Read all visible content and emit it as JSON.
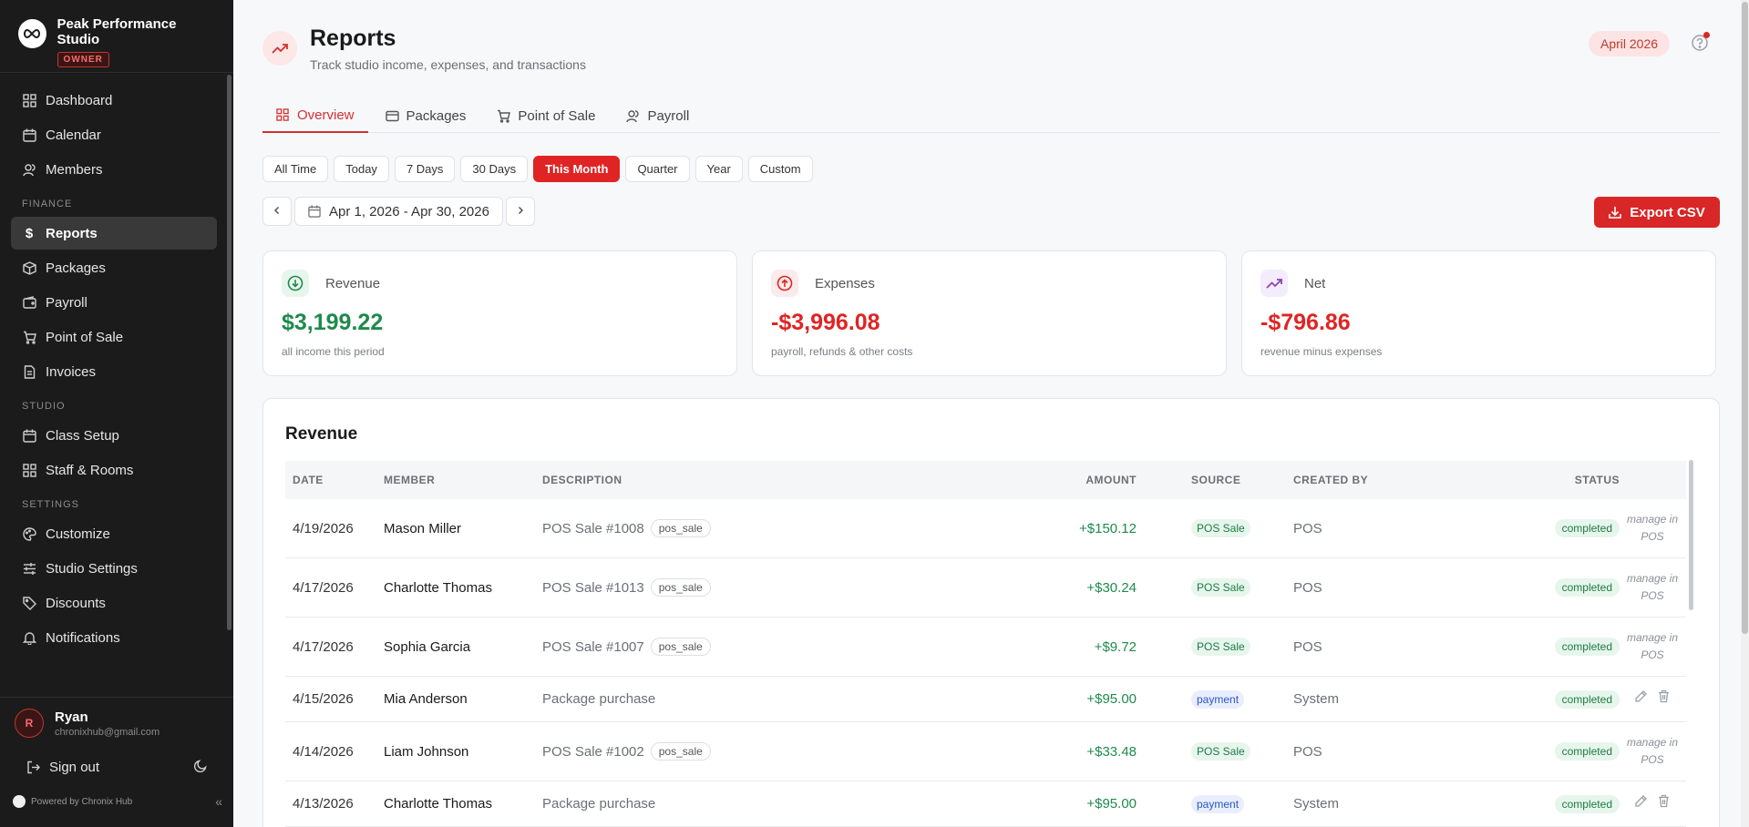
{
  "brand": {
    "name": "Peak Performance Studio",
    "role_badge": "OWNER"
  },
  "sidebar": {
    "items": [
      {
        "label": "Dashboard"
      },
      {
        "label": "Calendar"
      },
      {
        "label": "Members"
      }
    ],
    "finance_label": "FINANCE",
    "finance": [
      {
        "label": "Reports"
      },
      {
        "label": "Packages"
      },
      {
        "label": "Payroll"
      },
      {
        "label": "Point of Sale"
      },
      {
        "label": "Invoices"
      }
    ],
    "studio_label": "STUDIO",
    "studio": [
      {
        "label": "Class Setup"
      },
      {
        "label": "Staff & Rooms"
      }
    ],
    "settings_label": "SETTINGS",
    "settings": [
      {
        "label": "Customize"
      },
      {
        "label": "Studio Settings"
      },
      {
        "label": "Discounts"
      },
      {
        "label": "Notifications"
      }
    ],
    "user": {
      "initial": "R",
      "name": "Ryan",
      "email": "chronixhub@gmail.com"
    },
    "signout_label": "Sign out",
    "powered_by": "Powered by Chronix Hub"
  },
  "header": {
    "title": "Reports",
    "subtitle": "Track studio income, expenses, and transactions",
    "period_badge": "April 2026"
  },
  "tabs": [
    {
      "label": "Overview"
    },
    {
      "label": "Packages"
    },
    {
      "label": "Point of Sale"
    },
    {
      "label": "Payroll"
    }
  ],
  "filters": [
    "All Time",
    "Today",
    "7 Days",
    "30 Days",
    "This Month",
    "Quarter",
    "Year",
    "Custom"
  ],
  "active_filter": "This Month",
  "date_range": "Apr 1, 2026 - Apr 30, 2026",
  "export_label": "Export CSV",
  "cards": {
    "revenue": {
      "label": "Revenue",
      "value": "$3,199.22",
      "note": "all income this period"
    },
    "expenses": {
      "label": "Expenses",
      "value": "-$3,996.08",
      "note": "payroll, refunds & other costs"
    },
    "net": {
      "label": "Net",
      "value": "-$796.86",
      "note": "revenue minus expenses"
    }
  },
  "colors": {
    "accent": "#d92626",
    "positive": "#1e8a4c",
    "negative": "#e02424"
  },
  "revenue_table": {
    "title": "Revenue",
    "columns": {
      "date": "DATE",
      "member": "MEMBER",
      "description": "DESCRIPTION",
      "amount": "AMOUNT",
      "source": "SOURCE",
      "created_by": "CREATED BY",
      "status": "STATUS"
    },
    "rows": [
      {
        "date": "4/19/2026",
        "member": "Mason Miller",
        "description": "POS Sale #1008",
        "tag": "pos_sale",
        "amount": "+$150.12",
        "source": "POS Sale",
        "created_by": "POS",
        "status": "completed",
        "action": "manage in POS"
      },
      {
        "date": "4/17/2026",
        "member": "Charlotte Thomas",
        "description": "POS Sale #1013",
        "tag": "pos_sale",
        "amount": "+$30.24",
        "source": "POS Sale",
        "created_by": "POS",
        "status": "completed",
        "action": "manage in POS"
      },
      {
        "date": "4/17/2026",
        "member": "Sophia Garcia",
        "description": "POS Sale #1007",
        "tag": "pos_sale",
        "amount": "+$9.72",
        "source": "POS Sale",
        "created_by": "POS",
        "status": "completed",
        "action": "manage in POS"
      },
      {
        "date": "4/15/2026",
        "member": "Mia Anderson",
        "description": "Package purchase",
        "tag": "",
        "amount": "+$95.00",
        "source": "payment",
        "created_by": "System",
        "status": "completed",
        "action": ""
      },
      {
        "date": "4/14/2026",
        "member": "Liam Johnson",
        "description": "POS Sale #1002",
        "tag": "pos_sale",
        "amount": "+$33.48",
        "source": "POS Sale",
        "created_by": "POS",
        "status": "completed",
        "action": "manage in POS"
      },
      {
        "date": "4/13/2026",
        "member": "Charlotte Thomas",
        "description": "Package purchase",
        "tag": "",
        "amount": "+$95.00",
        "source": "payment",
        "created_by": "System",
        "status": "completed",
        "action": ""
      }
    ]
  }
}
